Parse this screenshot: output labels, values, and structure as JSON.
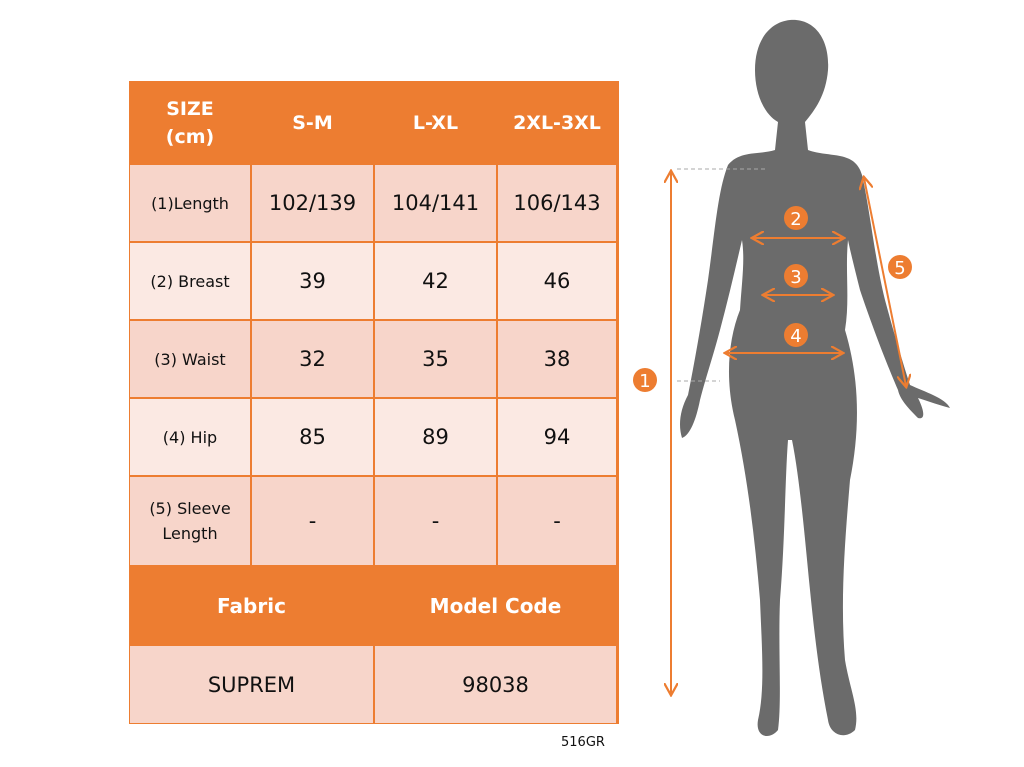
{
  "table": {
    "header": [
      "SIZE\n(cm)",
      "S-M",
      "L-XL",
      "2XL-3XL"
    ],
    "header_line1": "SIZE",
    "header_line2": "(cm)",
    "rows": [
      {
        "label": "(1)Length",
        "values": [
          "102/139",
          "104/141",
          "106/143"
        ]
      },
      {
        "label": "(2) Breast",
        "values": [
          "39",
          "42",
          "46"
        ]
      },
      {
        "label": "(3) Waist",
        "values": [
          "32",
          "35",
          "38"
        ]
      },
      {
        "label": "(4) Hip",
        "values": [
          "85",
          "89",
          "94"
        ]
      },
      {
        "label_line1": "(5) Sleeve",
        "label_line2": "Length",
        "values": [
          "-",
          "-",
          "-"
        ]
      }
    ],
    "fabric_header": "Fabric",
    "model_code_header": "Model Code",
    "fabric_value": "SUPREM",
    "model_code_value": "98038"
  },
  "product_code": "516GR",
  "figure": {
    "markers": [
      "1",
      "2",
      "3",
      "4",
      "5"
    ]
  },
  "colors": {
    "accent": "#ED7D31",
    "row_dark": "#F7D5CA",
    "row_light": "#FBE9E3",
    "silhouette": "#6B6B6B"
  }
}
